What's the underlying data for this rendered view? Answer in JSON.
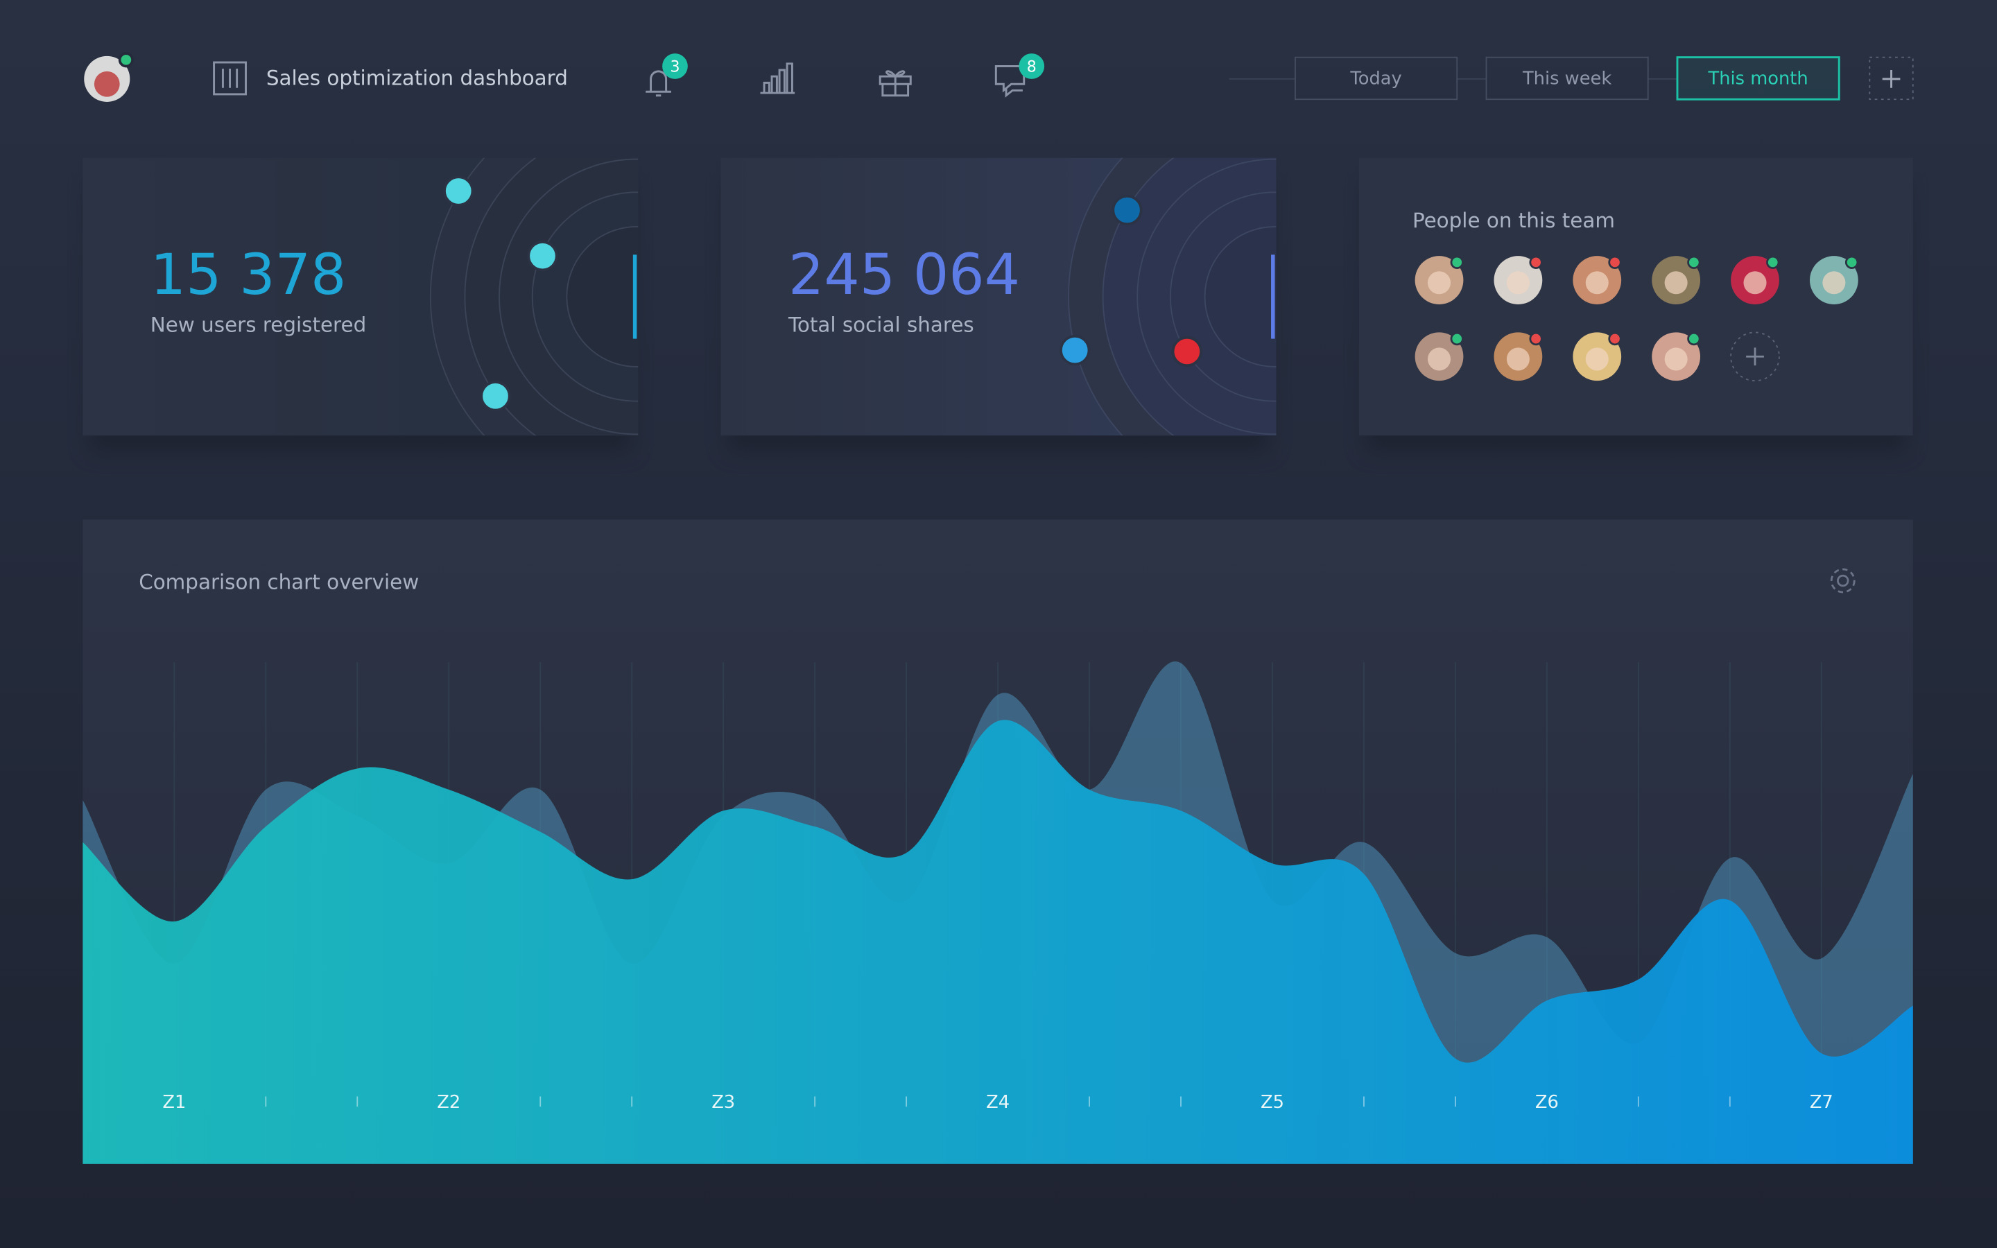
{
  "header": {
    "title": "Sales optimization dashboard",
    "badges": [
      3,
      8
    ],
    "tabs": [
      "Today",
      "This week",
      "This month"
    ]
  },
  "stats": [
    {
      "value": "15 378",
      "label": "New users registered",
      "color": "#1ea6d6"
    },
    {
      "value": "245 064",
      "label": "Total social shares",
      "color": "#5d7ce6"
    }
  ],
  "team": {
    "title": "People on this team"
  },
  "chart_data": {
    "type": "area",
    "title": "Comparison chart overview",
    "categories": [
      null,
      "Z1",
      null,
      null,
      "Z2",
      null,
      null,
      "Z3",
      null,
      null,
      "Z4",
      null,
      null,
      "Z5",
      null,
      null,
      "Z6",
      null,
      null,
      "Z7",
      null
    ],
    "ylim": [
      0,
      100
    ],
    "series": [
      {
        "color": [
          "#1cbcbc",
          "#0a8fe0"
        ],
        "values": [
          61,
          46,
          64,
          75,
          71,
          63,
          54,
          67,
          64,
          59,
          84,
          71,
          67,
          57,
          55,
          20,
          31,
          35,
          50,
          21,
          30
        ]
      },
      {
        "color": "#4d8fb8",
        "values": [
          69,
          38,
          71,
          66,
          57,
          71,
          38,
          66,
          69,
          50,
          89,
          71,
          95,
          50,
          61,
          40,
          43,
          23,
          58,
          39,
          74
        ]
      }
    ]
  }
}
